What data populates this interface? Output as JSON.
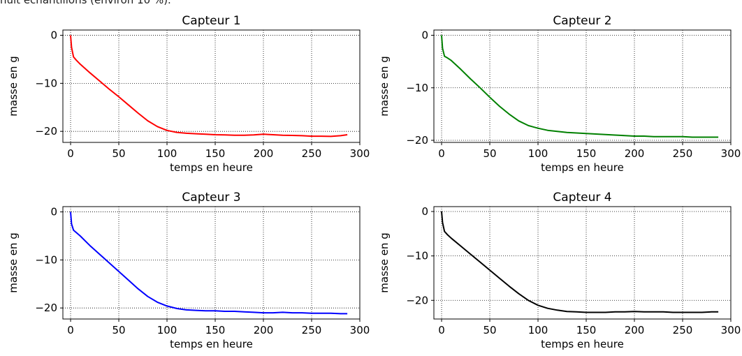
{
  "header_text": "huit échantillons (environ 10 %).",
  "chart_data": [
    {
      "type": "line",
      "title": "Capteur 1",
      "xlabel": "temps en heure",
      "ylabel": "masse en g",
      "xlim": [
        -8,
        300
      ],
      "ylim": [
        -22.3,
        1.1
      ],
      "xticks": [
        0,
        50,
        100,
        150,
        200,
        250,
        300
      ],
      "yticks": [
        0,
        -10,
        -20
      ],
      "grid": true,
      "color": "#ff0000",
      "series": [
        {
          "x": [
            0,
            1,
            3,
            6,
            10,
            20,
            30,
            40,
            50,
            60,
            70,
            80,
            90,
            100,
            110,
            120,
            130,
            140,
            150,
            160,
            170,
            180,
            190,
            200,
            210,
            220,
            230,
            240,
            250,
            260,
            270,
            280,
            287
          ],
          "y": [
            0,
            -2.5,
            -4.5,
            -5.2,
            -6.0,
            -7.8,
            -9.5,
            -11.2,
            -12.8,
            -14.5,
            -16.2,
            -17.8,
            -19.0,
            -19.8,
            -20.2,
            -20.4,
            -20.5,
            -20.6,
            -20.7,
            -20.75,
            -20.8,
            -20.8,
            -20.75,
            -20.6,
            -20.7,
            -20.8,
            -20.85,
            -20.9,
            -21.0,
            -21.0,
            -21.05,
            -20.9,
            -20.7
          ]
        }
      ]
    },
    {
      "type": "line",
      "title": "Capteur 2",
      "xlabel": "temps en heure",
      "ylabel": "masse en g",
      "xlim": [
        -8,
        300
      ],
      "ylim": [
        -20.4,
        1.0
      ],
      "xticks": [
        0,
        50,
        100,
        150,
        200,
        250,
        300
      ],
      "yticks": [
        0,
        -10,
        -20
      ],
      "grid": true,
      "color": "#008000",
      "series": [
        {
          "x": [
            0,
            1,
            3,
            6,
            10,
            20,
            30,
            40,
            50,
            60,
            70,
            80,
            90,
            100,
            110,
            120,
            130,
            140,
            150,
            160,
            170,
            180,
            190,
            200,
            210,
            220,
            230,
            240,
            250,
            260,
            270,
            280,
            287
          ],
          "y": [
            0,
            -2.5,
            -4.0,
            -4.3,
            -4.8,
            -6.5,
            -8.3,
            -10.0,
            -11.8,
            -13.5,
            -15.0,
            -16.3,
            -17.2,
            -17.7,
            -18.1,
            -18.3,
            -18.5,
            -18.6,
            -18.7,
            -18.8,
            -18.9,
            -19.0,
            -19.1,
            -19.2,
            -19.2,
            -19.3,
            -19.3,
            -19.3,
            -19.3,
            -19.4,
            -19.4,
            -19.4,
            -19.4
          ]
        }
      ]
    },
    {
      "type": "line",
      "title": "Capteur 3",
      "xlabel": "temps en heure",
      "ylabel": "masse en g",
      "xlim": [
        -8,
        300
      ],
      "ylim": [
        -22.3,
        1.1
      ],
      "xticks": [
        0,
        50,
        100,
        150,
        200,
        250,
        300
      ],
      "yticks": [
        0,
        -10,
        -20
      ],
      "grid": true,
      "color": "#0000ff",
      "series": [
        {
          "x": [
            0,
            1,
            3,
            6,
            10,
            20,
            30,
            40,
            50,
            60,
            70,
            80,
            90,
            100,
            110,
            120,
            130,
            140,
            150,
            160,
            170,
            180,
            190,
            200,
            210,
            220,
            230,
            240,
            250,
            260,
            270,
            280,
            287
          ],
          "y": [
            0,
            -2.5,
            -3.8,
            -4.3,
            -5.0,
            -7.0,
            -8.8,
            -10.6,
            -12.4,
            -14.2,
            -16.0,
            -17.6,
            -18.8,
            -19.6,
            -20.1,
            -20.4,
            -20.5,
            -20.6,
            -20.6,
            -20.7,
            -20.7,
            -20.8,
            -20.9,
            -21.0,
            -21.0,
            -20.9,
            -21.0,
            -21.0,
            -21.1,
            -21.1,
            -21.1,
            -21.2,
            -21.2
          ]
        }
      ]
    },
    {
      "type": "line",
      "title": "Capteur 4",
      "xlabel": "temps en heure",
      "ylabel": "masse en g",
      "xlim": [
        -8,
        300
      ],
      "ylim": [
        -24.2,
        1.1
      ],
      "xticks": [
        0,
        50,
        100,
        150,
        200,
        250,
        300
      ],
      "yticks": [
        0,
        -10,
        -20
      ],
      "grid": true,
      "color": "#000000",
      "series": [
        {
          "x": [
            0,
            1,
            3,
            6,
            10,
            20,
            30,
            40,
            50,
            60,
            70,
            80,
            90,
            100,
            110,
            120,
            130,
            140,
            150,
            160,
            170,
            180,
            190,
            200,
            210,
            220,
            230,
            240,
            250,
            260,
            270,
            280,
            287
          ],
          "y": [
            0,
            -2.5,
            -4.5,
            -5.2,
            -6.0,
            -7.8,
            -9.6,
            -11.4,
            -13.2,
            -15.0,
            -16.8,
            -18.5,
            -20.0,
            -21.1,
            -21.8,
            -22.2,
            -22.5,
            -22.6,
            -22.7,
            -22.7,
            -22.7,
            -22.6,
            -22.6,
            -22.5,
            -22.6,
            -22.6,
            -22.6,
            -22.7,
            -22.7,
            -22.7,
            -22.7,
            -22.6,
            -22.6
          ]
        }
      ]
    }
  ]
}
